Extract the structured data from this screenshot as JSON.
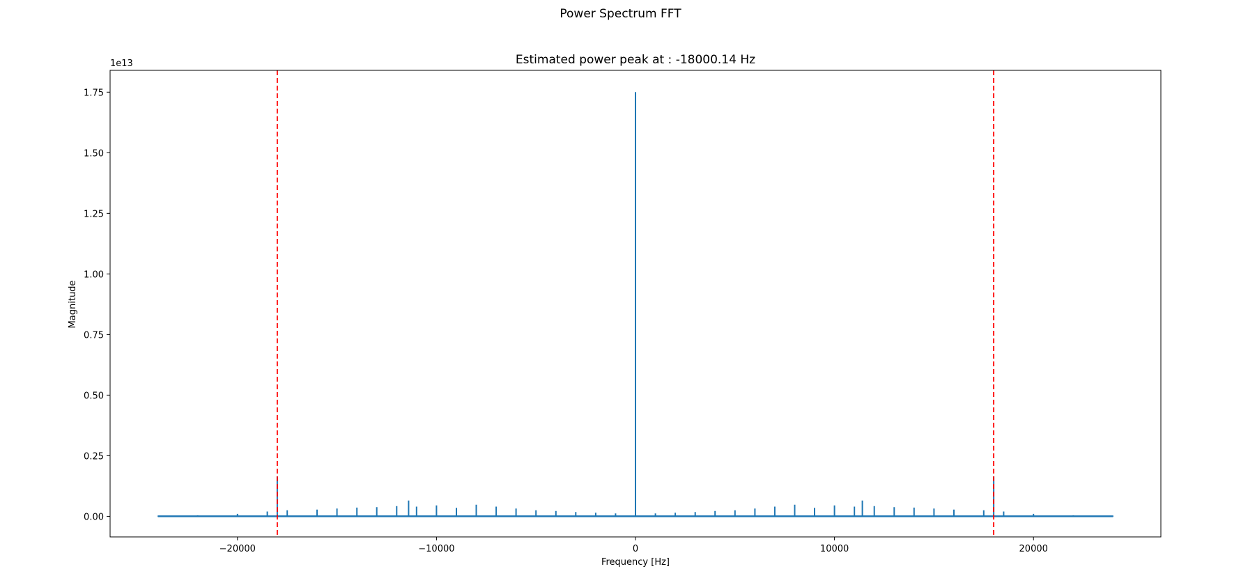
{
  "figure": {
    "suptitle": "Power Spectrum FFT"
  },
  "chart_data": {
    "type": "line",
    "title": "Estimated power peak at : -18000.14 Hz",
    "xlabel": "Frequency [Hz]",
    "ylabel": "Magnitude",
    "y_offset_label": "1e13",
    "xlim": [
      -26400,
      26400
    ],
    "ylim": [
      -0.085,
      1.84
    ],
    "xticks": [
      -20000,
      -10000,
      0,
      10000,
      20000
    ],
    "xtick_labels": [
      "−20000",
      "−10000",
      "0",
      "10000",
      "20000"
    ],
    "yticks": [
      0.0,
      0.25,
      0.5,
      0.75,
      1.0,
      1.25,
      1.5,
      1.75
    ],
    "ytick_labels": [
      "0.00",
      "0.25",
      "0.50",
      "0.75",
      "1.00",
      "1.25",
      "1.50",
      "1.75"
    ],
    "grid": false,
    "series": [
      {
        "color": "#1f77b4",
        "x": [
          -24000,
          -22000,
          -20000,
          -18500,
          -18000,
          -17500,
          -16000,
          -15000,
          -14000,
          -13000,
          -12000,
          -11400,
          -11000,
          -10000,
          -9000,
          -8000,
          -7000,
          -6000,
          -5000,
          -4000,
          -3000,
          -2000,
          -1000,
          0,
          1000,
          2000,
          3000,
          4000,
          5000,
          6000,
          7000,
          8000,
          9000,
          10000,
          11000,
          11400,
          12000,
          13000,
          14000,
          15000,
          16000,
          17500,
          18000,
          18500,
          20000,
          22000,
          24000
        ],
        "y": [
          0.002,
          0.004,
          0.01,
          0.02,
          0.165,
          0.025,
          0.028,
          0.032,
          0.036,
          0.038,
          0.042,
          0.065,
          0.04,
          0.045,
          0.035,
          0.048,
          0.04,
          0.032,
          0.025,
          0.022,
          0.018,
          0.015,
          0.012,
          1.75,
          0.012,
          0.015,
          0.018,
          0.022,
          0.025,
          0.032,
          0.04,
          0.048,
          0.035,
          0.045,
          0.04,
          0.065,
          0.042,
          0.038,
          0.036,
          0.032,
          0.028,
          0.025,
          0.165,
          0.02,
          0.01,
          0.004,
          0.002
        ]
      }
    ],
    "vlines": [
      {
        "x": -18000,
        "color": "#ff0000",
        "style": "dashed"
      },
      {
        "x": 18000,
        "color": "#ff0000",
        "style": "dashed"
      }
    ]
  }
}
